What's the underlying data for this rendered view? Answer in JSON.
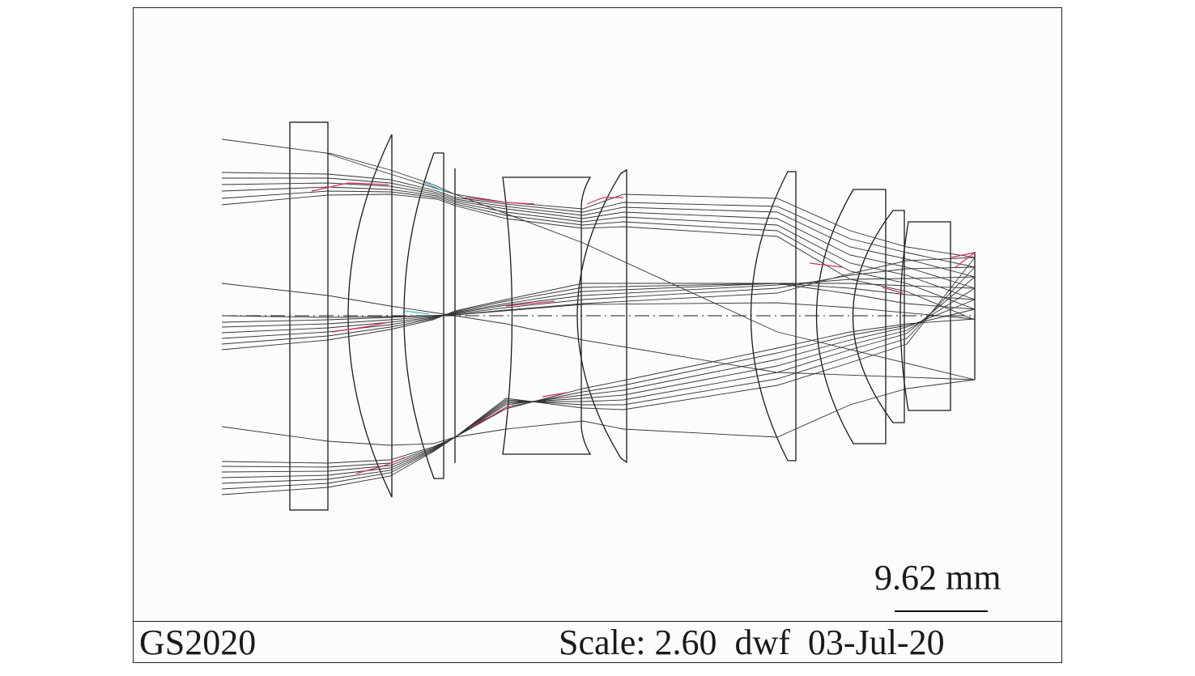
{
  "scale_bar": {
    "label": "9.62 mm"
  },
  "footer": {
    "left": "GS2020",
    "right": "Scale: 2.60  dwf  03-Jul-20"
  },
  "colors": {
    "outline": "#1a1a1a",
    "ray_dark": "#333333",
    "ray_magenta": "#d0306a",
    "ray_cyan": "#1ab0c8"
  }
}
